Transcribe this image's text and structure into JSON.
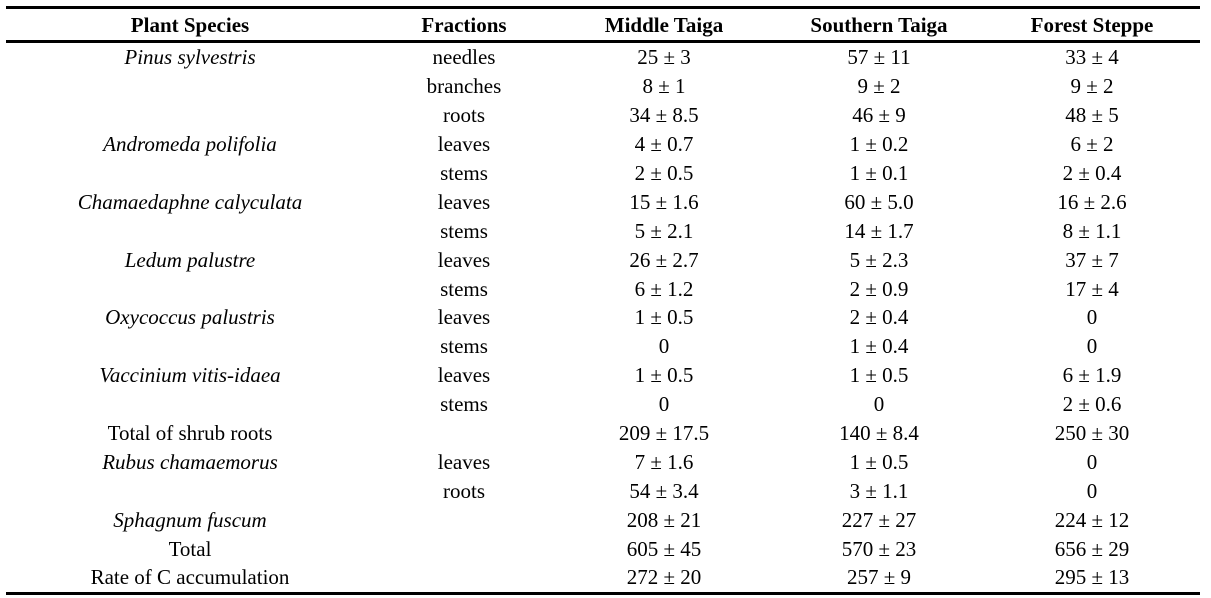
{
  "table": {
    "headers": [
      "Plant Species",
      "Fractions",
      "Middle Taiga",
      "Southern Taiga",
      "Forest Steppe"
    ],
    "rows": [
      {
        "species": "Pinus sylvestris",
        "italic": true,
        "fraction": "needles",
        "middle": "25 ± 3",
        "southern": "57 ± 11",
        "forest": "33 ± 4"
      },
      {
        "species": "",
        "italic": true,
        "fraction": "branches",
        "middle": "8 ± 1",
        "southern": "9 ± 2",
        "forest": "9 ± 2"
      },
      {
        "species": "",
        "italic": true,
        "fraction": "roots",
        "middle": "34 ± 8.5",
        "southern": "46 ± 9",
        "forest": "48 ± 5"
      },
      {
        "species": "Andromeda polifolia",
        "italic": true,
        "fraction": "leaves",
        "middle": "4 ± 0.7",
        "southern": "1 ± 0.2",
        "forest": "6 ± 2"
      },
      {
        "species": "",
        "italic": true,
        "fraction": "stems",
        "middle": "2 ± 0.5",
        "southern": "1 ± 0.1",
        "forest": "2 ± 0.4"
      },
      {
        "species": "Chamaedaphne calyculata",
        "italic": true,
        "fraction": "leaves",
        "middle": "15 ± 1.6",
        "southern": "60 ± 5.0",
        "forest": "16 ± 2.6"
      },
      {
        "species": "",
        "italic": true,
        "fraction": "stems",
        "middle": "5 ± 2.1",
        "southern": "14 ± 1.7",
        "forest": "8 ± 1.1"
      },
      {
        "species": "Ledum palustre",
        "italic": true,
        "fraction": "leaves",
        "middle": "26 ± 2.7",
        "southern": "5 ± 2.3",
        "forest": "37 ± 7"
      },
      {
        "species": "",
        "italic": true,
        "fraction": "stems",
        "middle": "6 ± 1.2",
        "southern": "2 ± 0.9",
        "forest": "17 ± 4"
      },
      {
        "species": "Oxycoccus palustris",
        "italic": true,
        "fraction": "leaves",
        "middle": "1 ± 0.5",
        "southern": "2 ± 0.4",
        "forest": "0"
      },
      {
        "species": "",
        "italic": true,
        "fraction": "stems",
        "middle": "0",
        "southern": "1 ± 0.4",
        "forest": "0"
      },
      {
        "species": "Vaccinium vitis-idaea",
        "italic": true,
        "fraction": "leaves",
        "middle": "1 ± 0.5",
        "southern": "1 ± 0.5",
        "forest": "6 ± 1.9"
      },
      {
        "species": "",
        "italic": true,
        "fraction": "stems",
        "middle": "0",
        "southern": "0",
        "forest": "2 ± 0.6"
      },
      {
        "species": "Total of shrub roots",
        "italic": false,
        "fraction": "",
        "middle": "209 ± 17.5",
        "southern": "140 ± 8.4",
        "forest": "250 ± 30"
      },
      {
        "species": "Rubus chamaemorus",
        "italic": true,
        "fraction": "leaves",
        "middle": "7 ± 1.6",
        "southern": "1 ± 0.5",
        "forest": "0"
      },
      {
        "species": "",
        "italic": true,
        "fraction": "roots",
        "middle": "54 ± 3.4",
        "southern": "3 ± 1.1",
        "forest": "0"
      },
      {
        "species": "Sphagnum fuscum",
        "italic": true,
        "fraction": "",
        "middle": "208 ± 21",
        "southern": "227 ± 27",
        "forest": "224 ± 12"
      },
      {
        "species": "Total",
        "italic": false,
        "fraction": "",
        "middle": "605 ± 45",
        "southern": "570 ± 23",
        "forest": "656 ± 29"
      },
      {
        "species": "Rate of C accumulation",
        "italic": false,
        "fraction": "",
        "middle": "272 ± 20",
        "southern": "257 ± 9",
        "forest": "295 ± 13"
      }
    ]
  }
}
